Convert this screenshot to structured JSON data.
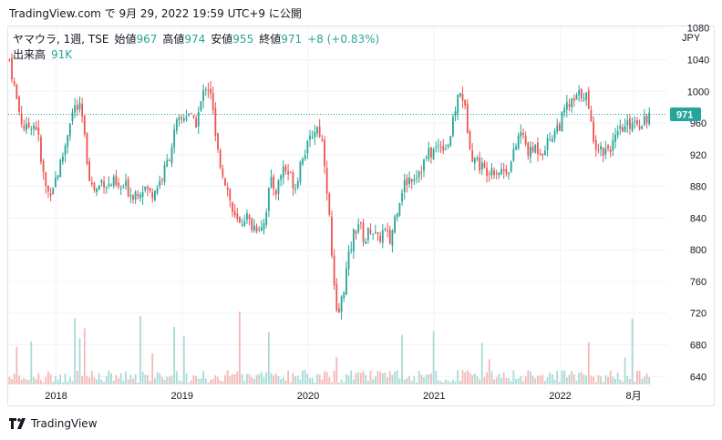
{
  "snapshot": {
    "text": "TradingView.com で 9月 29, 2022 19:59 UTC+9 に公開"
  },
  "legend": {
    "symbol": "ヤマウラ, 1週, TSE",
    "open_label": "始値",
    "open_value": "967",
    "high_label": "高値",
    "high_value": "974",
    "low_label": "安値",
    "low_value": "955",
    "close_label": "終値",
    "close_value": "971",
    "change": "+8 (+0.83%)",
    "volume_label": "出来高",
    "volume_value": "91K"
  },
  "footer": {
    "brand": "TradingView"
  },
  "colors": {
    "up": "#26a69a",
    "down": "#ef5350",
    "up_vol": "#a8dbd6",
    "down_vol": "#f6b7b5",
    "grid": "#f0f3fa",
    "axis_text": "#131722"
  },
  "chart_data": {
    "type": "candlestick",
    "currency": "JPY",
    "last_price": 971,
    "y_ticks": [
      640,
      680,
      720,
      760,
      800,
      840,
      880,
      920,
      960,
      1000,
      1040,
      1080
    ],
    "ylim": [
      630,
      1082
    ],
    "x_ticks": [
      "2018",
      "2019",
      "2020",
      "2021",
      "2022",
      "8月"
    ],
    "x_tick_dates": [
      2018.0,
      2019.0,
      2020.0,
      2021.0,
      2022.0,
      2022.583
    ],
    "xlim": [
      2017.62,
      2022.85
    ],
    "close_path": [
      [
        2017.63,
        1040
      ],
      [
        2017.68,
        995
      ],
      [
        2017.72,
        965
      ],
      [
        2017.76,
        950
      ],
      [
        2017.8,
        960
      ],
      [
        2017.85,
        955
      ],
      [
        2017.88,
        910
      ],
      [
        2017.93,
        870
      ],
      [
        2017.97,
        880
      ],
      [
        2018.02,
        900
      ],
      [
        2018.07,
        930
      ],
      [
        2018.11,
        965
      ],
      [
        2018.15,
        980
      ],
      [
        2018.2,
        975
      ],
      [
        2018.24,
        920
      ],
      [
        2018.28,
        880
      ],
      [
        2018.32,
        875
      ],
      [
        2018.37,
        890
      ],
      [
        2018.41,
        880
      ],
      [
        2018.45,
        885
      ],
      [
        2018.5,
        875
      ],
      [
        2018.55,
        880
      ],
      [
        2018.6,
        870
      ],
      [
        2018.65,
        875
      ],
      [
        2018.7,
        880
      ],
      [
        2018.75,
        870
      ],
      [
        2018.8,
        880
      ],
      [
        2018.85,
        895
      ],
      [
        2018.9,
        920
      ],
      [
        2018.95,
        955
      ],
      [
        2019.0,
        965
      ],
      [
        2019.05,
        975
      ],
      [
        2019.1,
        955
      ],
      [
        2019.15,
        985
      ],
      [
        2019.19,
        1010
      ],
      [
        2019.23,
        1000
      ],
      [
        2019.27,
        930
      ],
      [
        2019.32,
        900
      ],
      [
        2019.37,
        870
      ],
      [
        2019.41,
        840
      ],
      [
        2019.46,
        830
      ],
      [
        2019.5,
        845
      ],
      [
        2019.55,
        830
      ],
      [
        2019.6,
        830
      ],
      [
        2019.65,
        835
      ],
      [
        2019.7,
        885
      ],
      [
        2019.75,
        875
      ],
      [
        2019.8,
        905
      ],
      [
        2019.85,
        895
      ],
      [
        2019.9,
        880
      ],
      [
        2019.95,
        920
      ],
      [
        2020.0,
        930
      ],
      [
        2020.04,
        950
      ],
      [
        2020.08,
        955
      ],
      [
        2020.12,
        930
      ],
      [
        2020.16,
        860
      ],
      [
        2020.2,
        760
      ],
      [
        2020.23,
        710
      ],
      [
        2020.27,
        740
      ],
      [
        2020.31,
        780
      ],
      [
        2020.36,
        820
      ],
      [
        2020.4,
        835
      ],
      [
        2020.45,
        810
      ],
      [
        2020.5,
        830
      ],
      [
        2020.55,
        810
      ],
      [
        2020.6,
        825
      ],
      [
        2020.65,
        810
      ],
      [
        2020.7,
        850
      ],
      [
        2020.75,
        880
      ],
      [
        2020.8,
        890
      ],
      [
        2020.85,
        895
      ],
      [
        2020.9,
        905
      ],
      [
        2020.95,
        920
      ],
      [
        2021.0,
        925
      ],
      [
        2021.05,
        935
      ],
      [
        2021.1,
        930
      ],
      [
        2021.14,
        950
      ],
      [
        2021.18,
        990
      ],
      [
        2021.22,
        1000
      ],
      [
        2021.26,
        960
      ],
      [
        2021.3,
        920
      ],
      [
        2021.35,
        910
      ],
      [
        2021.4,
        900
      ],
      [
        2021.45,
        905
      ],
      [
        2021.5,
        900
      ],
      [
        2021.55,
        900
      ],
      [
        2021.6,
        905
      ],
      [
        2021.64,
        925
      ],
      [
        2021.68,
        950
      ],
      [
        2021.72,
        935
      ],
      [
        2021.76,
        920
      ],
      [
        2021.8,
        930
      ],
      [
        2021.85,
        925
      ],
      [
        2021.9,
        935
      ],
      [
        2021.95,
        950
      ],
      [
        2022.0,
        960
      ],
      [
        2022.05,
        980
      ],
      [
        2022.1,
        985
      ],
      [
        2022.15,
        995
      ],
      [
        2022.2,
        1000
      ],
      [
        2022.24,
        960
      ],
      [
        2022.28,
        935
      ],
      [
        2022.33,
        925
      ],
      [
        2022.38,
        930
      ],
      [
        2022.43,
        935
      ],
      [
        2022.48,
        950
      ],
      [
        2022.53,
        955
      ],
      [
        2022.58,
        965
      ],
      [
        2022.63,
        960
      ],
      [
        2022.68,
        968
      ],
      [
        2022.72,
        971
      ]
    ]
  }
}
